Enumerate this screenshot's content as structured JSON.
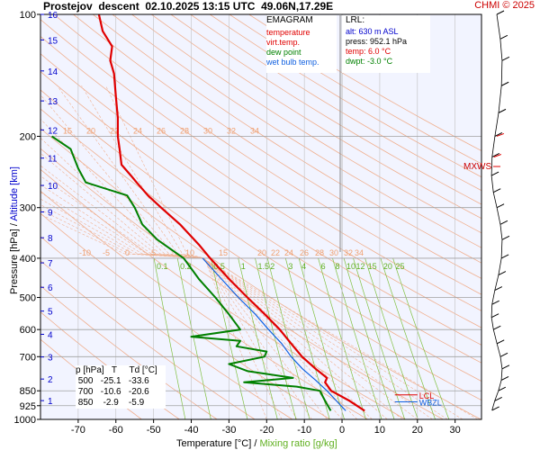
{
  "header": {
    "title": "Prostejov  descent  02.10.2025 13:15 UTC  49.06N,17.29E",
    "credit": "CHMI © 2025"
  },
  "legend": {
    "title": "EMAGRAM",
    "items": [
      {
        "label": "temperature",
        "color": "#e00000"
      },
      {
        "label": "virt.temp.",
        "color": "#e00000"
      },
      {
        "label": "dew point",
        "color": "#008000"
      },
      {
        "label": "wet bulb temp.",
        "color": "#1060e0"
      }
    ]
  },
  "lrl": {
    "title": "LRL:",
    "lines": [
      {
        "text": "alt: 630 m ASL",
        "color": "#0000cc"
      },
      {
        "text": "press: 952.1 hPa",
        "color": "#000000"
      },
      {
        "text": "temp: 6.0 °C",
        "color": "#e00000"
      },
      {
        "text": "dwpt: -3.0 °C",
        "color": "#008000"
      }
    ]
  },
  "table": {
    "header": "p [hPa]   T     Td [°C]",
    "rows": [
      " 500   -25.1   -33.6",
      " 700   -10.6   -20.6",
      " 850    -2.9    -5.9"
    ]
  },
  "axes": {
    "ylabel_pressure": "Pressure [hPa]",
    "ylabel_sep": "/",
    "ylabel_altitude": "Altitude [km]",
    "xlabel_temp": "Temperature [°C]",
    "xlabel_sep": "/",
    "xlabel_mixing": "Mixing ratio [g/kg]",
    "pressure_ticks": [
      "100",
      "200",
      "300",
      "400",
      "500",
      "600",
      "700",
      "850",
      "925",
      "1000"
    ],
    "altitude_ticks": [
      "1",
      "2",
      "3",
      "4",
      "5",
      "6",
      "7",
      "8",
      "9",
      "10",
      "11",
      "12",
      "13",
      "14",
      "15",
      "16"
    ],
    "temperature_ticks": [
      "-70",
      "-60",
      "-50",
      "-40",
      "-30",
      "-20",
      "-10",
      "0",
      "10",
      "20",
      "30"
    ],
    "mixing_labels": [
      "0.1",
      "0.2",
      "0.5",
      "1",
      "1.5",
      "2",
      "3",
      "4",
      "6",
      "8",
      "10",
      "12",
      "15",
      "20",
      "25"
    ],
    "theta_labels_upper": [
      "15",
      "20",
      "22",
      "24",
      "26",
      "28",
      "30",
      "32",
      "34"
    ],
    "theta_labels_lower": [
      "-10",
      "-5",
      "0",
      "5",
      "10",
      "15",
      "20",
      "22",
      "24",
      "26",
      "28",
      "30",
      "32",
      "34"
    ]
  },
  "annotations": {
    "mxws": "MXWS",
    "lcl": "LCL",
    "wbzl": "WBZL"
  },
  "colors": {
    "temperature": "#e00000",
    "dewpoint": "#008000",
    "wetbulb": "#1060e0",
    "isobar": "#a0a0a0",
    "dry_adiabat": "#f0b090",
    "moist_adiabat": "#f0b090",
    "mixing_ratio": "#80c040",
    "isotherm": "#c0c0c0",
    "plot_bg": "#f2f4ff"
  },
  "chart_data": {
    "type": "line",
    "title": "Prostejov  descent  02.10.2025 13:15 UTC  49.06N,17.29E",
    "xlabel": "Temperature [°C]",
    "ylabel": "Pressure [hPa]",
    "xlim": [
      -80,
      37
    ],
    "ylim": [
      1000,
      100
    ],
    "y_scale": "log",
    "series": [
      {
        "name": "temperature",
        "points": [
          {
            "p": 100,
            "t": -64.5
          },
          {
            "p": 110,
            "t": -63.5
          },
          {
            "p": 120,
            "t": -61.0
          },
          {
            "p": 130,
            "t": -61.5
          },
          {
            "p": 140,
            "t": -60.5
          },
          {
            "p": 160,
            "t": -60.0
          },
          {
            "p": 180,
            "t": -59.5
          },
          {
            "p": 200,
            "t": -59.5
          },
          {
            "p": 215,
            "t": -59.0
          },
          {
            "p": 235,
            "t": -58.5
          },
          {
            "p": 250,
            "t": -56.0
          },
          {
            "p": 260,
            "t": -54.5
          },
          {
            "p": 280,
            "t": -51.5
          },
          {
            "p": 300,
            "t": -48.0
          },
          {
            "p": 330,
            "t": -43.0
          },
          {
            "p": 370,
            "t": -38.0
          },
          {
            "p": 400,
            "t": -35.0
          },
          {
            "p": 450,
            "t": -30.0
          },
          {
            "p": 500,
            "t": -25.1
          },
          {
            "p": 550,
            "t": -20.5
          },
          {
            "p": 600,
            "t": -16.5
          },
          {
            "p": 650,
            "t": -13.5
          },
          {
            "p": 700,
            "t": -10.6
          },
          {
            "p": 750,
            "t": -7.0
          },
          {
            "p": 790,
            "t": -4.0
          },
          {
            "p": 810,
            "t": -4.5
          },
          {
            "p": 850,
            "t": -2.9
          },
          {
            "p": 900,
            "t": 2.0
          },
          {
            "p": 952.1,
            "t": 6.0
          }
        ]
      },
      {
        "name": "dew point",
        "points": [
          {
            "p": 200,
            "t": -77.0
          },
          {
            "p": 215,
            "t": -72.0
          },
          {
            "p": 240,
            "t": -70.0
          },
          {
            "p": 260,
            "t": -68.0
          },
          {
            "p": 280,
            "t": -57.0
          },
          {
            "p": 300,
            "t": -55.0
          },
          {
            "p": 330,
            "t": -53.0
          },
          {
            "p": 360,
            "t": -49.0
          },
          {
            "p": 400,
            "t": -42.0
          },
          {
            "p": 450,
            "t": -38.0
          },
          {
            "p": 500,
            "t": -33.6
          },
          {
            "p": 550,
            "t": -30.0
          },
          {
            "p": 600,
            "t": -27.0
          },
          {
            "p": 625,
            "t": -40.0
          },
          {
            "p": 640,
            "t": -27.0
          },
          {
            "p": 660,
            "t": -28.0
          },
          {
            "p": 680,
            "t": -20.0
          },
          {
            "p": 700,
            "t": -20.6
          },
          {
            "p": 730,
            "t": -30.0
          },
          {
            "p": 760,
            "t": -25.0
          },
          {
            "p": 790,
            "t": -13.0
          },
          {
            "p": 810,
            "t": -26.0
          },
          {
            "p": 830,
            "t": -12.0
          },
          {
            "p": 850,
            "t": -5.9
          },
          {
            "p": 900,
            "t": -4.5
          },
          {
            "p": 952.1,
            "t": -3.0
          }
        ]
      },
      {
        "name": "wet bulb temp.",
        "points": [
          {
            "p": 400,
            "t": -37.0
          },
          {
            "p": 450,
            "t": -32.0
          },
          {
            "p": 500,
            "t": -27.5
          },
          {
            "p": 550,
            "t": -23.0
          },
          {
            "p": 600,
            "t": -19.5
          },
          {
            "p": 650,
            "t": -16.0
          },
          {
            "p": 700,
            "t": -13.5
          },
          {
            "p": 750,
            "t": -10.5
          },
          {
            "p": 800,
            "t": -7.0
          },
          {
            "p": 850,
            "t": -4.0
          },
          {
            "p": 900,
            "t": -1.5
          },
          {
            "p": 952.1,
            "t": 1.0
          }
        ]
      }
    ]
  }
}
